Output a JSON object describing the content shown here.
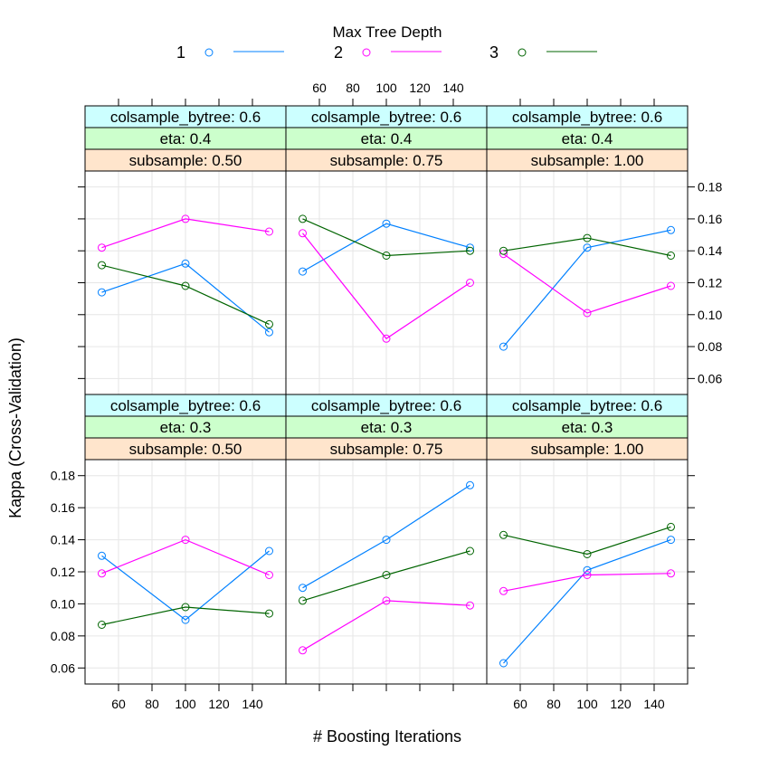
{
  "chart_data": {
    "type": "line",
    "legend": {
      "title": "Max Tree Depth",
      "placement": "top",
      "entries": [
        "1",
        "2",
        "3"
      ]
    },
    "xlabel": "# Boosting Iterations",
    "ylabel": "Kappa (Cross-Validation)",
    "x": [
      50,
      100,
      150
    ],
    "xlim": [
      40,
      160
    ],
    "ylim": [
      0.05,
      0.19
    ],
    "xticks": [
      60,
      80,
      100,
      120,
      140
    ],
    "yticks": [
      0.06,
      0.08,
      0.1,
      0.12,
      0.14,
      0.16,
      0.18
    ],
    "ytick_labels": [
      "0.06",
      "0.08",
      "0.10",
      "0.12",
      "0.14",
      "0.16",
      "0.18"
    ],
    "grid": true,
    "series_colors": [
      "#0080ff",
      "#ff00ff",
      "#006400"
    ],
    "strip_colors": [
      "#ccffff",
      "#ccffcc",
      "#ffe5cc"
    ],
    "panels": [
      {
        "strips": [
          "colsample_bytree: 0.6",
          "eta: 0.3",
          "subsample: 0.50"
        ],
        "series": [
          {
            "name": "1",
            "values": [
              0.13,
              0.09,
              0.133
            ]
          },
          {
            "name": "2",
            "values": [
              0.119,
              0.14,
              0.118
            ]
          },
          {
            "name": "3",
            "values": [
              0.087,
              0.098,
              0.094
            ]
          }
        ]
      },
      {
        "strips": [
          "colsample_bytree: 0.6",
          "eta: 0.3",
          "subsample: 0.75"
        ],
        "series": [
          {
            "name": "1",
            "values": [
              0.11,
              0.14,
              0.174
            ]
          },
          {
            "name": "2",
            "values": [
              0.071,
              0.102,
              0.099
            ]
          },
          {
            "name": "3",
            "values": [
              0.102,
              0.118,
              0.133
            ]
          }
        ]
      },
      {
        "strips": [
          "colsample_bytree: 0.6",
          "eta: 0.3",
          "subsample: 1.00"
        ],
        "series": [
          {
            "name": "1",
            "values": [
              0.063,
              0.121,
              0.14
            ]
          },
          {
            "name": "2",
            "values": [
              0.108,
              0.118,
              0.119
            ]
          },
          {
            "name": "3",
            "values": [
              0.143,
              0.131,
              0.148
            ]
          }
        ]
      },
      {
        "strips": [
          "colsample_bytree: 0.6",
          "eta: 0.4",
          "subsample: 0.50"
        ],
        "series": [
          {
            "name": "1",
            "values": [
              0.114,
              0.132,
              0.089
            ]
          },
          {
            "name": "2",
            "values": [
              0.142,
              0.16,
              0.152
            ]
          },
          {
            "name": "3",
            "values": [
              0.131,
              0.118,
              0.094
            ]
          }
        ]
      },
      {
        "strips": [
          "colsample_bytree: 0.6",
          "eta: 0.4",
          "subsample: 0.75"
        ],
        "series": [
          {
            "name": "1",
            "values": [
              0.127,
              0.157,
              0.142
            ]
          },
          {
            "name": "2",
            "values": [
              0.151,
              0.085,
              0.12
            ]
          },
          {
            "name": "3",
            "values": [
              0.16,
              0.137,
              0.14
            ]
          }
        ]
      },
      {
        "strips": [
          "colsample_bytree: 0.6",
          "eta: 0.4",
          "subsample: 1.00"
        ],
        "series": [
          {
            "name": "1",
            "values": [
              0.08,
              0.142,
              0.153
            ]
          },
          {
            "name": "2",
            "values": [
              0.138,
              0.101,
              0.118
            ]
          },
          {
            "name": "3",
            "values": [
              0.14,
              0.148,
              0.137
            ]
          }
        ]
      }
    ]
  }
}
